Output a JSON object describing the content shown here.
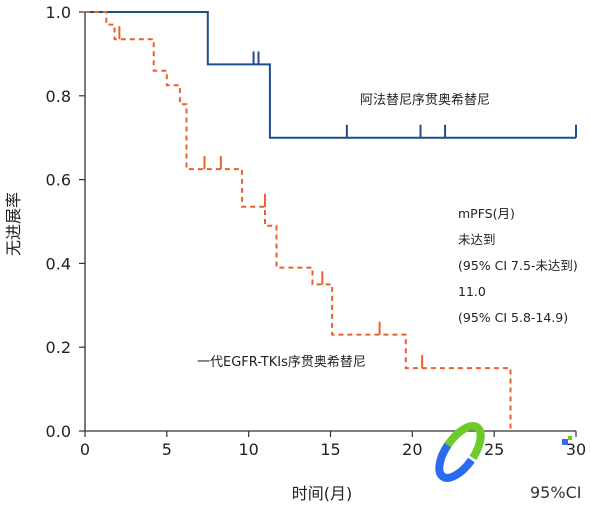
{
  "chart_data": {
    "type": "line",
    "step": true,
    "xlabel": "时间(月)",
    "ylabel": "无进展率",
    "xlim": [
      0,
      30
    ],
    "ylim": [
      0,
      1.0
    ],
    "xticks": [
      "0",
      "5",
      "10",
      "15",
      "20",
      "25",
      "30"
    ],
    "yticks": [
      "0.0",
      "0.2",
      "0.4",
      "0.6",
      "0.8",
      "1.0"
    ],
    "grid": false,
    "series": [
      {
        "name": "阿法替尼序贯奥希替尼",
        "color": "#1f4e8c",
        "dash": "solid",
        "x": [
          0,
          7.5,
          7.5,
          11.3,
          11.3,
          30
        ],
        "y": [
          1.0,
          1.0,
          0.875,
          0.875,
          0.7,
          0.7
        ],
        "censored": [
          [
            10.3,
            0.875
          ],
          [
            10.6,
            0.875
          ],
          [
            16.0,
            0.7
          ],
          [
            20.5,
            0.7
          ],
          [
            22.0,
            0.7
          ],
          [
            30.0,
            0.7
          ]
        ]
      },
      {
        "name": "一代EGFR-TKIs序贯奥希替尼",
        "color": "#e8612c",
        "dash": "dashed",
        "x": [
          0,
          1.3,
          1.3,
          1.8,
          1.8,
          4.2,
          4.2,
          5.0,
          5.0,
          5.8,
          5.8,
          6.2,
          6.2,
          9.6,
          9.6,
          11.0,
          11.0,
          11.7,
          11.7,
          13.9,
          13.9,
          15.1,
          15.1,
          19.6,
          19.6,
          26.0,
          26.0
        ],
        "y": [
          1.0,
          1.0,
          0.97,
          0.97,
          0.935,
          0.935,
          0.86,
          0.86,
          0.825,
          0.825,
          0.78,
          0.78,
          0.625,
          0.625,
          0.535,
          0.535,
          0.49,
          0.49,
          0.39,
          0.39,
          0.35,
          0.35,
          0.23,
          0.23,
          0.15,
          0.15,
          0
        ],
        "censored": [
          [
            2.1,
            0.935
          ],
          [
            7.3,
            0.625
          ],
          [
            8.3,
            0.625
          ],
          [
            11.0,
            0.535
          ],
          [
            14.5,
            0.35
          ],
          [
            18.0,
            0.23
          ],
          [
            20.6,
            0.15
          ]
        ]
      }
    ],
    "annotations": {
      "label_series1": "阿法替尼序贯奥希替尼",
      "label_series2": "一代EGFR-TKIs序贯奥希替尼",
      "mpfs_title": "mPFS(月)",
      "mpfs_value1": "未达到",
      "mpfs_ci1": "(95% CI 7.5-未达到)",
      "mpfs_value2": "11.0",
      "mpfs_ci2": "(95% CI 5.8-14.9)"
    }
  },
  "watermark": {
    "text": "95%CI",
    "colors": [
      "#2a6bf0",
      "#6ccb2a"
    ]
  }
}
